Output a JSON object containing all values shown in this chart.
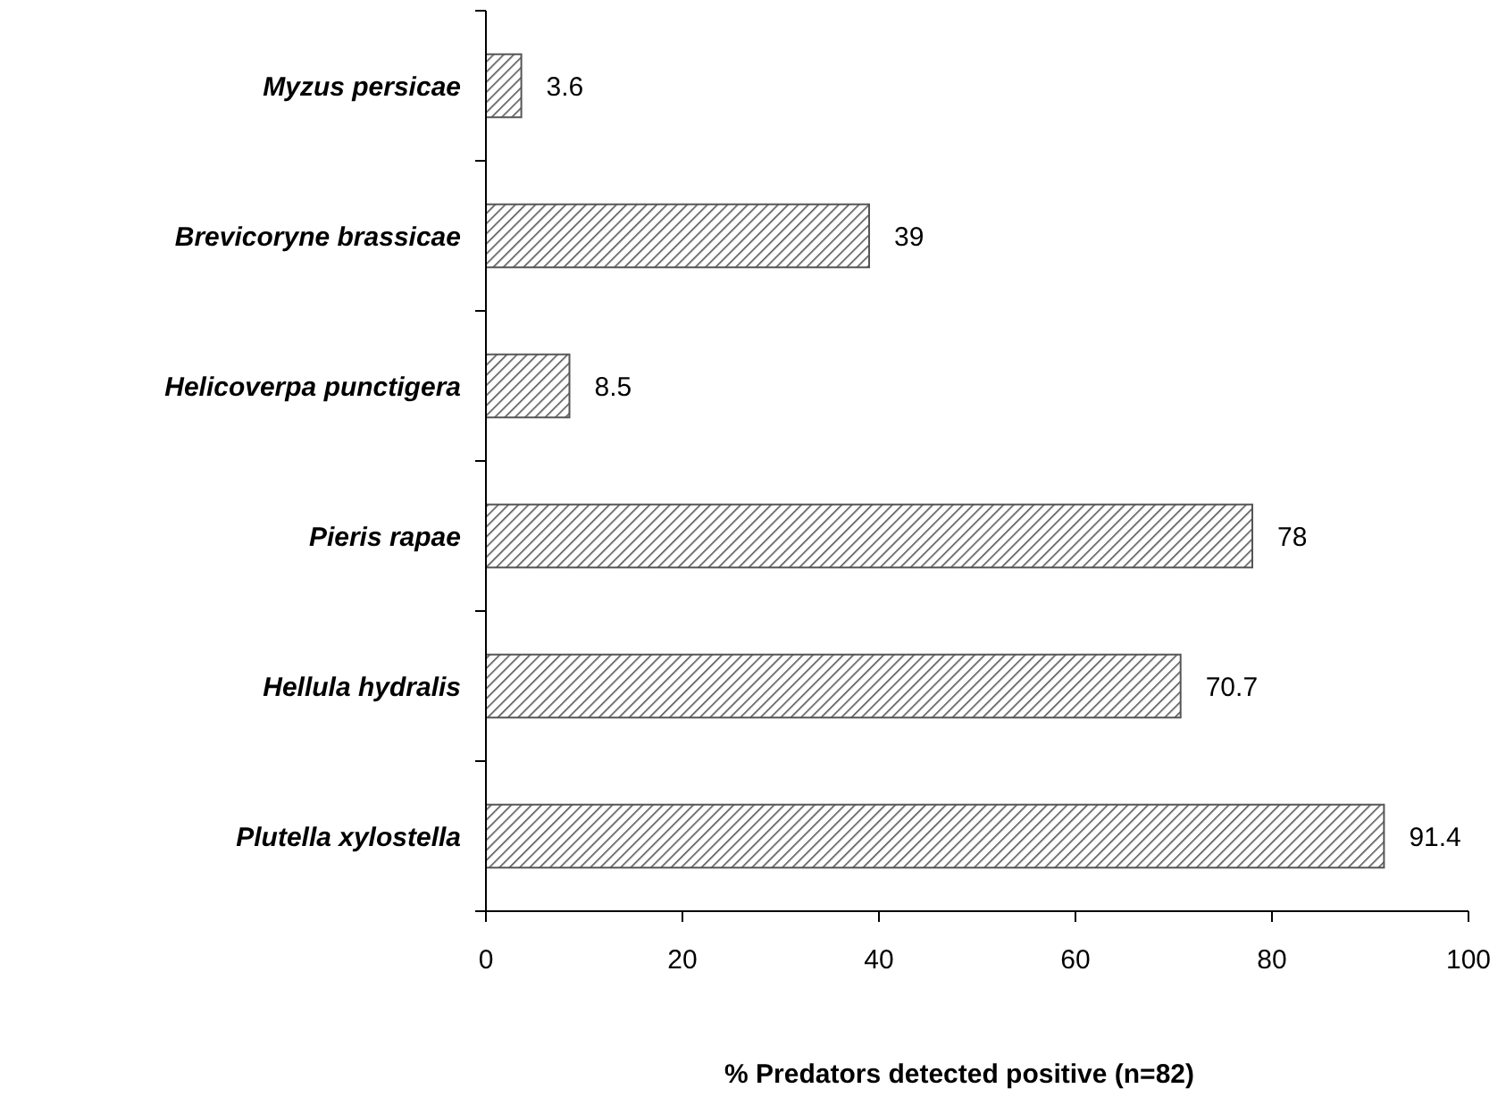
{
  "chart_data": {
    "type": "bar",
    "orientation": "horizontal",
    "categories": [
      "Myzus persicae",
      "Brevicoryne brassicae",
      "Helicoverpa punctigera",
      "Pieris rapae",
      "Hellula hydralis",
      "Plutella xylostella"
    ],
    "values": [
      3.6,
      39,
      8.5,
      78,
      70.7,
      91.4
    ],
    "color": "#555555",
    "xlim": [
      0,
      100
    ],
    "xticks": [
      0,
      20,
      40,
      60,
      80,
      100
    ],
    "xlabel": "% Predators detected positive (n=82)",
    "data_labels": true
  }
}
